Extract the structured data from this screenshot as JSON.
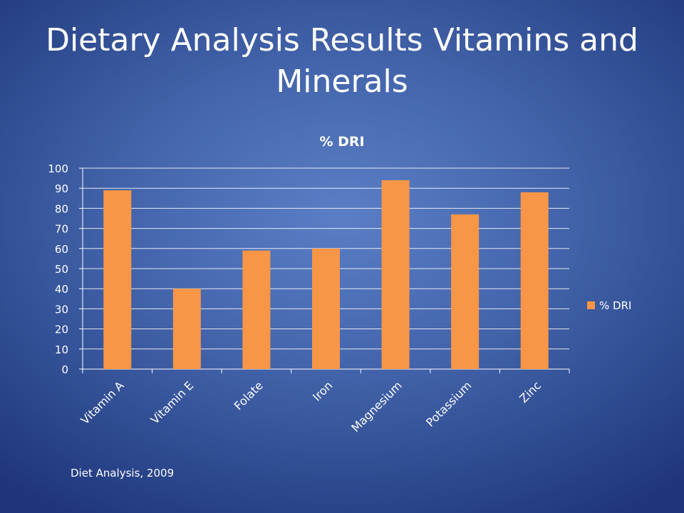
{
  "slide": {
    "title": "Dietary Analysis Results Vitamins and Minerals",
    "footnote": "Diet Analysis, 2009"
  },
  "chart_data": {
    "type": "bar",
    "title": "% DRI",
    "xlabel": "",
    "ylabel": "",
    "categories": [
      "Vitamin A",
      "Vitamin E",
      "Folate",
      "Iron",
      "Magnesium",
      "Potassium",
      "Zinc"
    ],
    "series": [
      {
        "name": "% DRI",
        "values": [
          89,
          40,
          59,
          60,
          94,
          77,
          88
        ],
        "color": "#f79646"
      }
    ],
    "ylim": [
      0,
      100
    ],
    "yticks": [
      0,
      10,
      20,
      30,
      40,
      50,
      60,
      70,
      80,
      90,
      100
    ],
    "grid": true,
    "legend_position": "right"
  }
}
